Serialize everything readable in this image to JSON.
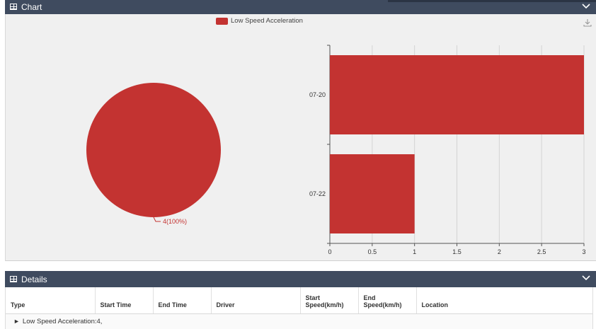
{
  "chart_panel": {
    "title": "Chart",
    "legend_label": "Low Speed Acceleration",
    "accent": "#c33331"
  },
  "chart_data": [
    {
      "type": "pie",
      "labels": [
        "Low Speed Acceleration"
      ],
      "values": [
        4
      ],
      "slice_labels": [
        "4(100%)"
      ],
      "color": "#c33331"
    },
    {
      "type": "bar",
      "orientation": "horizontal",
      "categories": [
        "07-20",
        "07-22"
      ],
      "series": [
        {
          "name": "Low Speed Acceleration",
          "values": [
            3,
            1
          ]
        }
      ],
      "xlim": [
        0,
        3
      ],
      "xticks": [
        "0",
        "0.5",
        "1",
        "1.5",
        "2",
        "2.5",
        "3"
      ],
      "grid": true,
      "color": "#c33331"
    }
  ],
  "details_panel": {
    "title": "Details",
    "columns": [
      "Type",
      "Start Time",
      "End Time",
      "Driver",
      "Start Speed(km/h)",
      "End Speed(km/h)",
      "Location"
    ],
    "groups": [
      {
        "label": "Low Speed Acceleration:4,"
      }
    ]
  },
  "icons": {
    "panel": "table-icon",
    "collapse": "chevron-down-icon",
    "download": "download-icon",
    "expand": "caret-right-icon"
  }
}
